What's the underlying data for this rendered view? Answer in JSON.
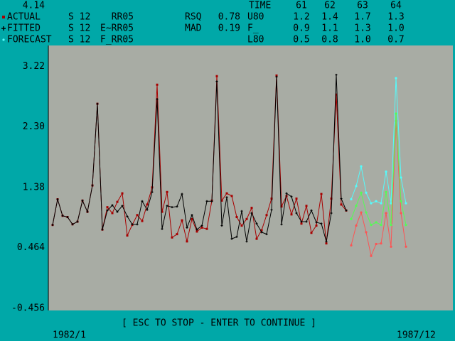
{
  "chart_data": {
    "type": "line",
    "ylim": [
      -0.456,
      4.14
    ],
    "yticks": [
      4.14,
      3.22,
      {
        "value": 2.3,
        "label": "2.30"
      },
      1.38,
      0.464,
      -0.456
    ],
    "grid": false,
    "categories": [
      "1982/1",
      null,
      null,
      null,
      null,
      null,
      null,
      null,
      null,
      null,
      null,
      null,
      null,
      null,
      null,
      null,
      null,
      null,
      null,
      null,
      null,
      null,
      null,
      null,
      null,
      null,
      null,
      null,
      null,
      null,
      null,
      null,
      null,
      null,
      null,
      null,
      null,
      null,
      null,
      null,
      null,
      null,
      null,
      null,
      null,
      null,
      null,
      null,
      null,
      null,
      null,
      null,
      null,
      null,
      null,
      null,
      null,
      null,
      null,
      null,
      null,
      null,
      null,
      null,
      null,
      null,
      null,
      null,
      null,
      null,
      null,
      "1987/12"
    ],
    "series": [
      {
        "name": "ACTUAL",
        "season": "S 12",
        "variable": "RR05",
        "color": "#a80000",
        "legend_color": "#a80000",
        "marker": "square",
        "values": [
          0.81,
          1.2,
          0.95,
          0.93,
          0.82,
          0.86,
          1.18,
          1.01,
          1.41,
          2.65,
          0.74,
          1.08,
          0.99,
          1.16,
          1.29,
          0.65,
          0.81,
          0.96,
          0.87,
          1.12,
          1.38,
          2.94,
          1.01,
          1.31,
          0.62,
          0.67,
          0.88,
          0.56,
          0.9,
          0.71,
          0.77,
          0.75,
          1.18,
          3.07,
          1.18,
          1.29,
          1.25,
          0.93,
          0.8,
          0.9,
          1.07,
          0.6,
          0.73,
          0.96,
          1.21,
          3.08,
          1.09,
          1.25,
          0.97,
          1.21,
          0.83,
          1.1,
          0.69,
          0.8,
          1.28,
          0.53,
          1.21,
          2.79,
          1.12,
          1.03,
          null,
          null,
          null,
          null,
          null,
          null,
          null,
          null,
          null,
          null,
          null,
          null
        ]
      },
      {
        "name": "FITTED",
        "season": "S 12",
        "variable": "E~RR05",
        "color": "#000000",
        "legend_color": "#000000",
        "marker": "plus",
        "values": [
          0.81,
          1.2,
          0.95,
          0.93,
          0.82,
          0.86,
          1.18,
          1.01,
          1.41,
          2.65,
          0.74,
          1.03,
          1.11,
          1.01,
          1.1,
          0.94,
          0.82,
          0.82,
          1.17,
          1.04,
          1.31,
          2.72,
          0.75,
          1.1,
          1.08,
          1.09,
          1.28,
          0.77,
          0.96,
          0.74,
          0.8,
          1.17,
          1.17,
          2.99,
          0.8,
          1.23,
          0.6,
          0.63,
          1.02,
          0.56,
          0.99,
          0.83,
          0.7,
          0.67,
          1.04,
          3.06,
          0.82,
          1.29,
          1.24,
          0.99,
          0.86,
          0.86,
          1.03,
          0.85,
          0.83,
          0.56,
          0.99,
          3.09,
          1.21,
          1.03,
          null,
          null,
          null,
          null,
          null,
          null,
          null,
          null,
          null,
          null,
          null,
          null
        ]
      },
      {
        "name": "FORECAST",
        "season": "S 12",
        "variable": "F_RR05",
        "color": "#54fc54",
        "legend_color": "#54fcfc",
        "marker": "dot",
        "values": [
          null,
          null,
          null,
          null,
          null,
          null,
          null,
          null,
          null,
          null,
          null,
          null,
          null,
          null,
          null,
          null,
          null,
          null,
          null,
          null,
          null,
          null,
          null,
          null,
          null,
          null,
          null,
          null,
          null,
          null,
          null,
          null,
          null,
          null,
          null,
          null,
          null,
          null,
          null,
          null,
          null,
          null,
          null,
          null,
          null,
          null,
          null,
          null,
          null,
          null,
          null,
          null,
          null,
          null,
          null,
          null,
          null,
          null,
          null,
          null,
          0.9,
          1.1,
          1.3,
          1.0,
          0.81,
          0.85,
          0.81,
          1.31,
          0.81,
          2.5,
          1.17,
          0.81
        ]
      }
    ],
    "bands": [
      {
        "color": "#54fcfc",
        "values": [
          null,
          null,
          null,
          null,
          null,
          null,
          null,
          null,
          null,
          null,
          null,
          null,
          null,
          null,
          null,
          null,
          null,
          null,
          null,
          null,
          null,
          null,
          null,
          null,
          null,
          null,
          null,
          null,
          null,
          null,
          null,
          null,
          null,
          null,
          null,
          null,
          null,
          null,
          null,
          null,
          null,
          null,
          null,
          null,
          null,
          null,
          null,
          null,
          null,
          null,
          null,
          null,
          null,
          null,
          null,
          null,
          null,
          null,
          null,
          null,
          1.2,
          1.4,
          1.7,
          1.3,
          1.14,
          1.17,
          1.14,
          1.62,
          1.14,
          3.04,
          1.53,
          1.14
        ]
      },
      {
        "color": "#fc5454",
        "values": [
          null,
          null,
          null,
          null,
          null,
          null,
          null,
          null,
          null,
          null,
          null,
          null,
          null,
          null,
          null,
          null,
          null,
          null,
          null,
          null,
          null,
          null,
          null,
          null,
          null,
          null,
          null,
          null,
          null,
          null,
          null,
          null,
          null,
          null,
          null,
          null,
          null,
          null,
          null,
          null,
          null,
          null,
          null,
          null,
          null,
          null,
          null,
          null,
          null,
          null,
          null,
          null,
          null,
          null,
          null,
          null,
          null,
          null,
          null,
          null,
          0.5,
          0.8,
          1.0,
          0.7,
          0.34,
          0.52,
          0.53,
          0.99,
          0.48,
          2.39,
          0.99,
          0.48
        ]
      }
    ],
    "stats": [
      {
        "label": "RSQ",
        "value": 0.78
      },
      {
        "label": "MAD",
        "value": 0.19
      }
    ],
    "table": {
      "header": "TIME",
      "columns": [
        61,
        62,
        63,
        64
      ],
      "rows": [
        {
          "label": "U80",
          "cells": [
            "1.2",
            "1.4",
            "1.7",
            "1.3"
          ]
        },
        {
          "label": "F_",
          "cells": [
            "0.9",
            "1.1",
            "1.3",
            "1.0"
          ]
        },
        {
          "label": "L80",
          "cells": [
            "0.5",
            "0.8",
            "1.0",
            "0.7"
          ]
        }
      ]
    },
    "prompt": "[ ESC TO STOP - ENTER TO CONTINUE ]"
  }
}
